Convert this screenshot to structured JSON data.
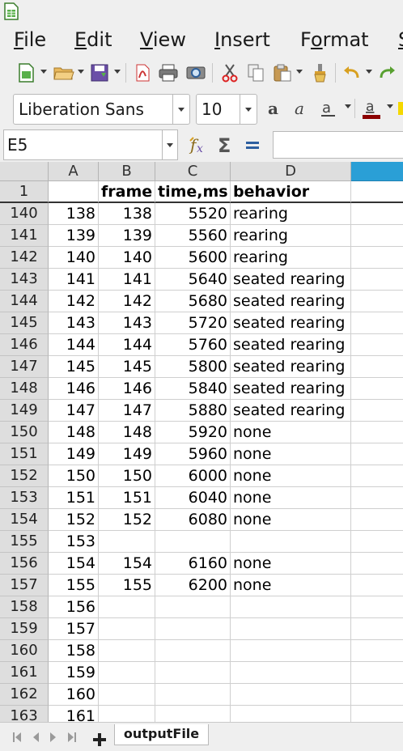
{
  "menu": {
    "items": [
      {
        "label": "File",
        "ul": "F",
        "rest": "ile"
      },
      {
        "label": "Edit",
        "ul": "E",
        "rest": "dit"
      },
      {
        "label": "View",
        "ul": "V",
        "rest": "iew"
      },
      {
        "label": "Insert",
        "ul": "I",
        "rest": "nsert"
      },
      {
        "label": "Format",
        "ul": "o",
        "pre": "F",
        "rest": "rmat"
      }
    ]
  },
  "fontbar": {
    "font_name": "Liberation Sans",
    "font_size": "10"
  },
  "formula": {
    "cell_ref": "E5",
    "content": ""
  },
  "columns": [
    "A",
    "B",
    "C",
    "D"
  ],
  "header_row": {
    "row": "1",
    "cells": [
      "",
      "frame",
      "time,ms",
      "behavior"
    ]
  },
  "rows": [
    {
      "row": "140",
      "a": "138",
      "b": "138",
      "c": "5520",
      "d": "rearing"
    },
    {
      "row": "141",
      "a": "139",
      "b": "139",
      "c": "5560",
      "d": "rearing"
    },
    {
      "row": "142",
      "a": "140",
      "b": "140",
      "c": "5600",
      "d": "rearing"
    },
    {
      "row": "143",
      "a": "141",
      "b": "141",
      "c": "5640",
      "d": "seated rearing"
    },
    {
      "row": "144",
      "a": "142",
      "b": "142",
      "c": "5680",
      "d": "seated rearing"
    },
    {
      "row": "145",
      "a": "143",
      "b": "143",
      "c": "5720",
      "d": "seated rearing"
    },
    {
      "row": "146",
      "a": "144",
      "b": "144",
      "c": "5760",
      "d": "seated rearing"
    },
    {
      "row": "147",
      "a": "145",
      "b": "145",
      "c": "5800",
      "d": "seated rearing"
    },
    {
      "row": "148",
      "a": "146",
      "b": "146",
      "c": "5840",
      "d": "seated rearing"
    },
    {
      "row": "149",
      "a": "147",
      "b": "147",
      "c": "5880",
      "d": "seated rearing"
    },
    {
      "row": "150",
      "a": "148",
      "b": "148",
      "c": "5920",
      "d": "none"
    },
    {
      "row": "151",
      "a": "149",
      "b": "149",
      "c": "5960",
      "d": "none"
    },
    {
      "row": "152",
      "a": "150",
      "b": "150",
      "c": "6000",
      "d": "none"
    },
    {
      "row": "153",
      "a": "151",
      "b": "151",
      "c": "6040",
      "d": "none"
    },
    {
      "row": "154",
      "a": "152",
      "b": "152",
      "c": "6080",
      "d": "none"
    },
    {
      "row": "155",
      "a": "153",
      "b": "",
      "c": "",
      "d": ""
    },
    {
      "row": "156",
      "a": "154",
      "b": "154",
      "c": "6160",
      "d": "none"
    },
    {
      "row": "157",
      "a": "155",
      "b": "155",
      "c": "6200",
      "d": "none"
    },
    {
      "row": "158",
      "a": "156",
      "b": "",
      "c": "",
      "d": ""
    },
    {
      "row": "159",
      "a": "157",
      "b": "",
      "c": "",
      "d": ""
    },
    {
      "row": "160",
      "a": "158",
      "b": "",
      "c": "",
      "d": ""
    },
    {
      "row": "161",
      "a": "159",
      "b": "",
      "c": "",
      "d": ""
    },
    {
      "row": "162",
      "a": "160",
      "b": "",
      "c": "",
      "d": ""
    },
    {
      "row": "163",
      "a": "161",
      "b": "",
      "c": "",
      "d": ""
    }
  ],
  "sheet_tab": "outputFile",
  "colors": {
    "selected_col_header": "#2a9fd6",
    "font_color_bar": "#8b0000",
    "highlight_bar": "#f5d800"
  }
}
